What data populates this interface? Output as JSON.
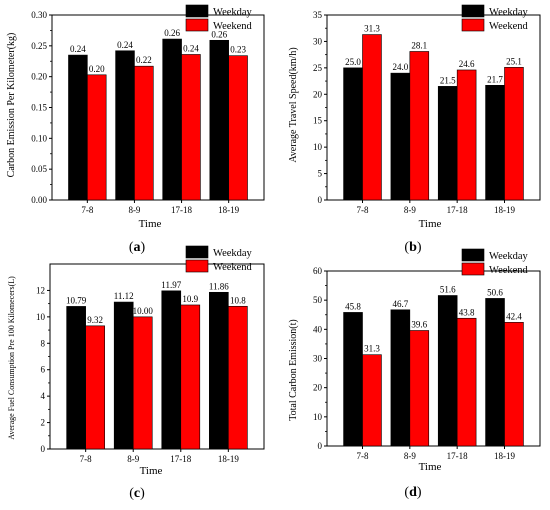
{
  "figure": {
    "panels": [
      {
        "label": "(a)",
        "letter": "a",
        "ylabel": "Carbon Emission Per Kilometer(kg)",
        "xlabel": "Time"
      },
      {
        "label": "(b)",
        "letter": "b",
        "ylabel": "Average Travel Speed(km/h)",
        "xlabel": "Time"
      },
      {
        "label": "(c)",
        "letter": "c",
        "ylabel": "Average Fuel Consumption Pre 100 Kilomecers(L)",
        "xlabel": "Time"
      },
      {
        "label": "(d)",
        "letter": "d",
        "ylabel": "Total Carbon Emission(t)",
        "xlabel": "Time"
      }
    ],
    "colors": {
      "weekday": "#000000",
      "weekend": "#ff0000"
    }
  },
  "chart_data": [
    {
      "type": "bar",
      "categories": [
        "7-8",
        "8-9",
        "17-18",
        "18-19"
      ],
      "series": [
        {
          "name": "Weekday",
          "values": [
            0.235,
            0.242,
            0.261,
            0.259
          ],
          "labels": [
            "0.24",
            "0.24",
            "0.26",
            "0.26"
          ]
        },
        {
          "name": "Weekend",
          "values": [
            0.203,
            0.217,
            0.236,
            0.234
          ],
          "labels": [
            "0.20",
            "0.22",
            "0.24",
            "0.23"
          ]
        }
      ],
      "title": "",
      "xlabel": "Time",
      "ylabel": "Carbon Emission Per Kilometer(kg)",
      "ylim": [
        0,
        0.3
      ],
      "yticks": [
        "0.00",
        "0.05",
        "0.10",
        "0.15",
        "0.20",
        "0.25",
        "0.30"
      ],
      "legend": "top-right",
      "grid": false
    },
    {
      "type": "bar",
      "categories": [
        "7-8",
        "8-9",
        "17-18",
        "18-19"
      ],
      "series": [
        {
          "name": "Weekday",
          "values": [
            25.0,
            24.0,
            21.5,
            21.7
          ],
          "labels": [
            "25.0",
            "24.0",
            "21.5",
            "21.7"
          ]
        },
        {
          "name": "Weekend",
          "values": [
            31.3,
            28.1,
            24.6,
            25.1
          ],
          "labels": [
            "31.3",
            "28.1",
            "24.6",
            "25.1"
          ]
        }
      ],
      "title": "",
      "xlabel": "Time",
      "ylabel": "Average Travel Speed(km/h)",
      "ylim": [
        0,
        35
      ],
      "yticks": [
        "0",
        "5",
        "10",
        "15",
        "20",
        "25",
        "30",
        "35"
      ],
      "legend": "top-right",
      "grid": false
    },
    {
      "type": "bar",
      "categories": [
        "7-8",
        "8-9",
        "17-18",
        "18-19"
      ],
      "series": [
        {
          "name": "Weekday",
          "values": [
            10.79,
            11.12,
            11.97,
            11.86
          ],
          "labels": [
            "10.79",
            "11.12",
            "11.97",
            "11.86"
          ]
        },
        {
          "name": "Weekend",
          "values": [
            9.32,
            10.0,
            10.9,
            10.8
          ],
          "labels": [
            "9.32",
            "10.00",
            "10.9",
            "10.8"
          ]
        }
      ],
      "title": "",
      "xlabel": "Time",
      "ylabel": "Average Fuel Consumption Pre 100 Kilomecers(L)",
      "ylim": [
        0,
        14
      ],
      "yticks": [
        "0",
        "2",
        "4",
        "6",
        "8",
        "10",
        "12"
      ],
      "legend": "top-right",
      "grid": false
    },
    {
      "type": "bar",
      "categories": [
        "7-8",
        "8-9",
        "17-18",
        "18-19"
      ],
      "series": [
        {
          "name": "Weekday",
          "values": [
            45.8,
            46.7,
            51.6,
            50.6
          ],
          "labels": [
            "45.8",
            "46.7",
            "51.6",
            "50.6"
          ]
        },
        {
          "name": "Weekend",
          "values": [
            31.3,
            39.6,
            43.8,
            42.4
          ],
          "labels": [
            "31.3",
            "39.6",
            "43.8",
            "42.4"
          ]
        }
      ],
      "title": "",
      "xlabel": "Time",
      "ylabel": "Total Carbon Emission(t)",
      "ylim": [
        0,
        60
      ],
      "yticks": [
        "0",
        "10",
        "20",
        "30",
        "40",
        "50",
        "60"
      ],
      "legend": "top-right",
      "grid": false
    }
  ]
}
